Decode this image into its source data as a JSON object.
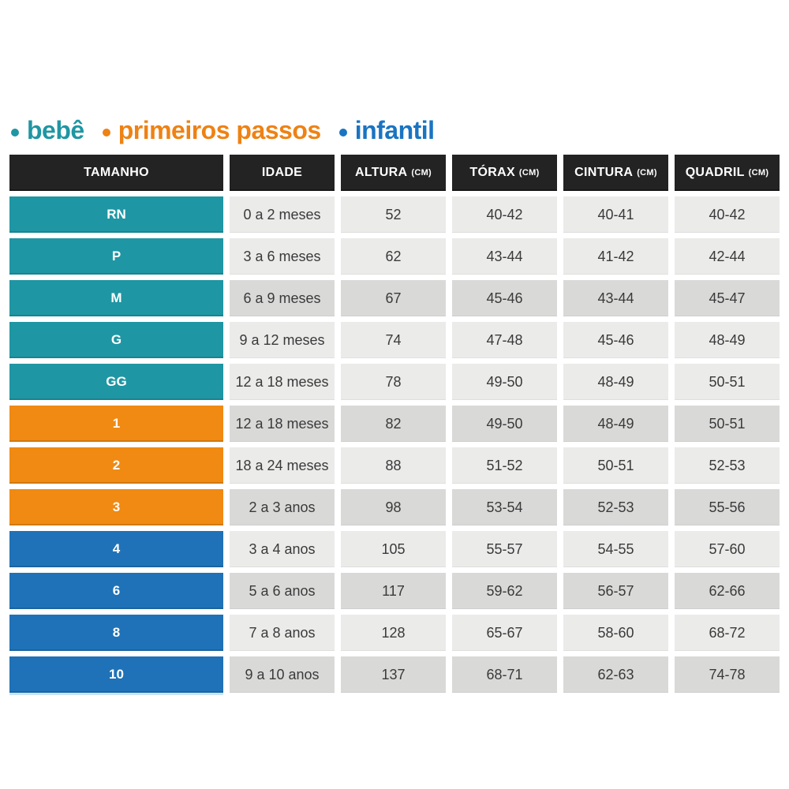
{
  "legend": {
    "items": [
      {
        "label": "bebê",
        "color": "#1f96a3"
      },
      {
        "label": "primeiros passos",
        "color": "#ee8214"
      },
      {
        "label": "infantil",
        "color": "#1a74c2"
      }
    ]
  },
  "colors": {
    "bebe": "#1f96a3",
    "primeiros-passos": "#f08a12",
    "infantil": "#1f72b7",
    "header_bg": "#232323",
    "header_text": "#ffffff",
    "cell_light": "#ebebea",
    "cell_dark": "#d9dad8",
    "cell_text": "#3a3a3a"
  },
  "chart_data": {
    "type": "table",
    "legend_entries": [
      "bebê",
      "primeiros passos",
      "infantil"
    ],
    "columns": [
      {
        "label": "TAMANHO",
        "unit": ""
      },
      {
        "label": "IDADE",
        "unit": ""
      },
      {
        "label": "ALTURA",
        "unit": "(CM)"
      },
      {
        "label": "TÓRAX",
        "unit": "(CM)"
      },
      {
        "label": "CINTURA",
        "unit": "(CM)"
      },
      {
        "label": "QUADRIL",
        "unit": "(CM)"
      }
    ],
    "rows": [
      {
        "size": "RN",
        "group": "bebe",
        "shade": "light",
        "idade": "0 a 2 meses",
        "altura": "52",
        "torax": "40-42",
        "cintura": "40-41",
        "quadril": "40-42"
      },
      {
        "size": "P",
        "group": "bebe",
        "shade": "light",
        "idade": "3 a 6 meses",
        "altura": "62",
        "torax": "43-44",
        "cintura": "41-42",
        "quadril": "42-44"
      },
      {
        "size": "M",
        "group": "bebe",
        "shade": "dark",
        "idade": "6 a 9 meses",
        "altura": "67",
        "torax": "45-46",
        "cintura": "43-44",
        "quadril": "45-47"
      },
      {
        "size": "G",
        "group": "bebe",
        "shade": "light",
        "idade": "9 a 12 meses",
        "altura": "74",
        "torax": "47-48",
        "cintura": "45-46",
        "quadril": "48-49"
      },
      {
        "size": "GG",
        "group": "bebe",
        "shade": "light",
        "idade": "12 a 18 meses",
        "altura": "78",
        "torax": "49-50",
        "cintura": "48-49",
        "quadril": "50-51"
      },
      {
        "size": "1",
        "group": "primeiros-passos",
        "shade": "dark",
        "idade": "12 a 18 meses",
        "altura": "82",
        "torax": "49-50",
        "cintura": "48-49",
        "quadril": "50-51"
      },
      {
        "size": "2",
        "group": "primeiros-passos",
        "shade": "light",
        "idade": "18 a 24 meses",
        "altura": "88",
        "torax": "51-52",
        "cintura": "50-51",
        "quadril": "52-53"
      },
      {
        "size": "3",
        "group": "primeiros-passos",
        "shade": "dark",
        "idade": "2 a 3 anos",
        "altura": "98",
        "torax": "53-54",
        "cintura": "52-53",
        "quadril": "55-56"
      },
      {
        "size": "4",
        "group": "infantil",
        "shade": "light",
        "idade": "3 a 4 anos",
        "altura": "105",
        "torax": "55-57",
        "cintura": "54-55",
        "quadril": "57-60"
      },
      {
        "size": "6",
        "group": "infantil",
        "shade": "dark",
        "idade": "5 a 6 anos",
        "altura": "117",
        "torax": "59-62",
        "cintura": "56-57",
        "quadril": "62-66"
      },
      {
        "size": "8",
        "group": "infantil",
        "shade": "light",
        "idade": "7 a 8 anos",
        "altura": "128",
        "torax": "65-67",
        "cintura": "58-60",
        "quadril": "68-72"
      },
      {
        "size": "10",
        "group": "infantil",
        "shade": "dark",
        "idade": "9 a 10 anos",
        "altura": "137",
        "torax": "68-71",
        "cintura": "62-63",
        "quadril": "74-78"
      }
    ]
  }
}
